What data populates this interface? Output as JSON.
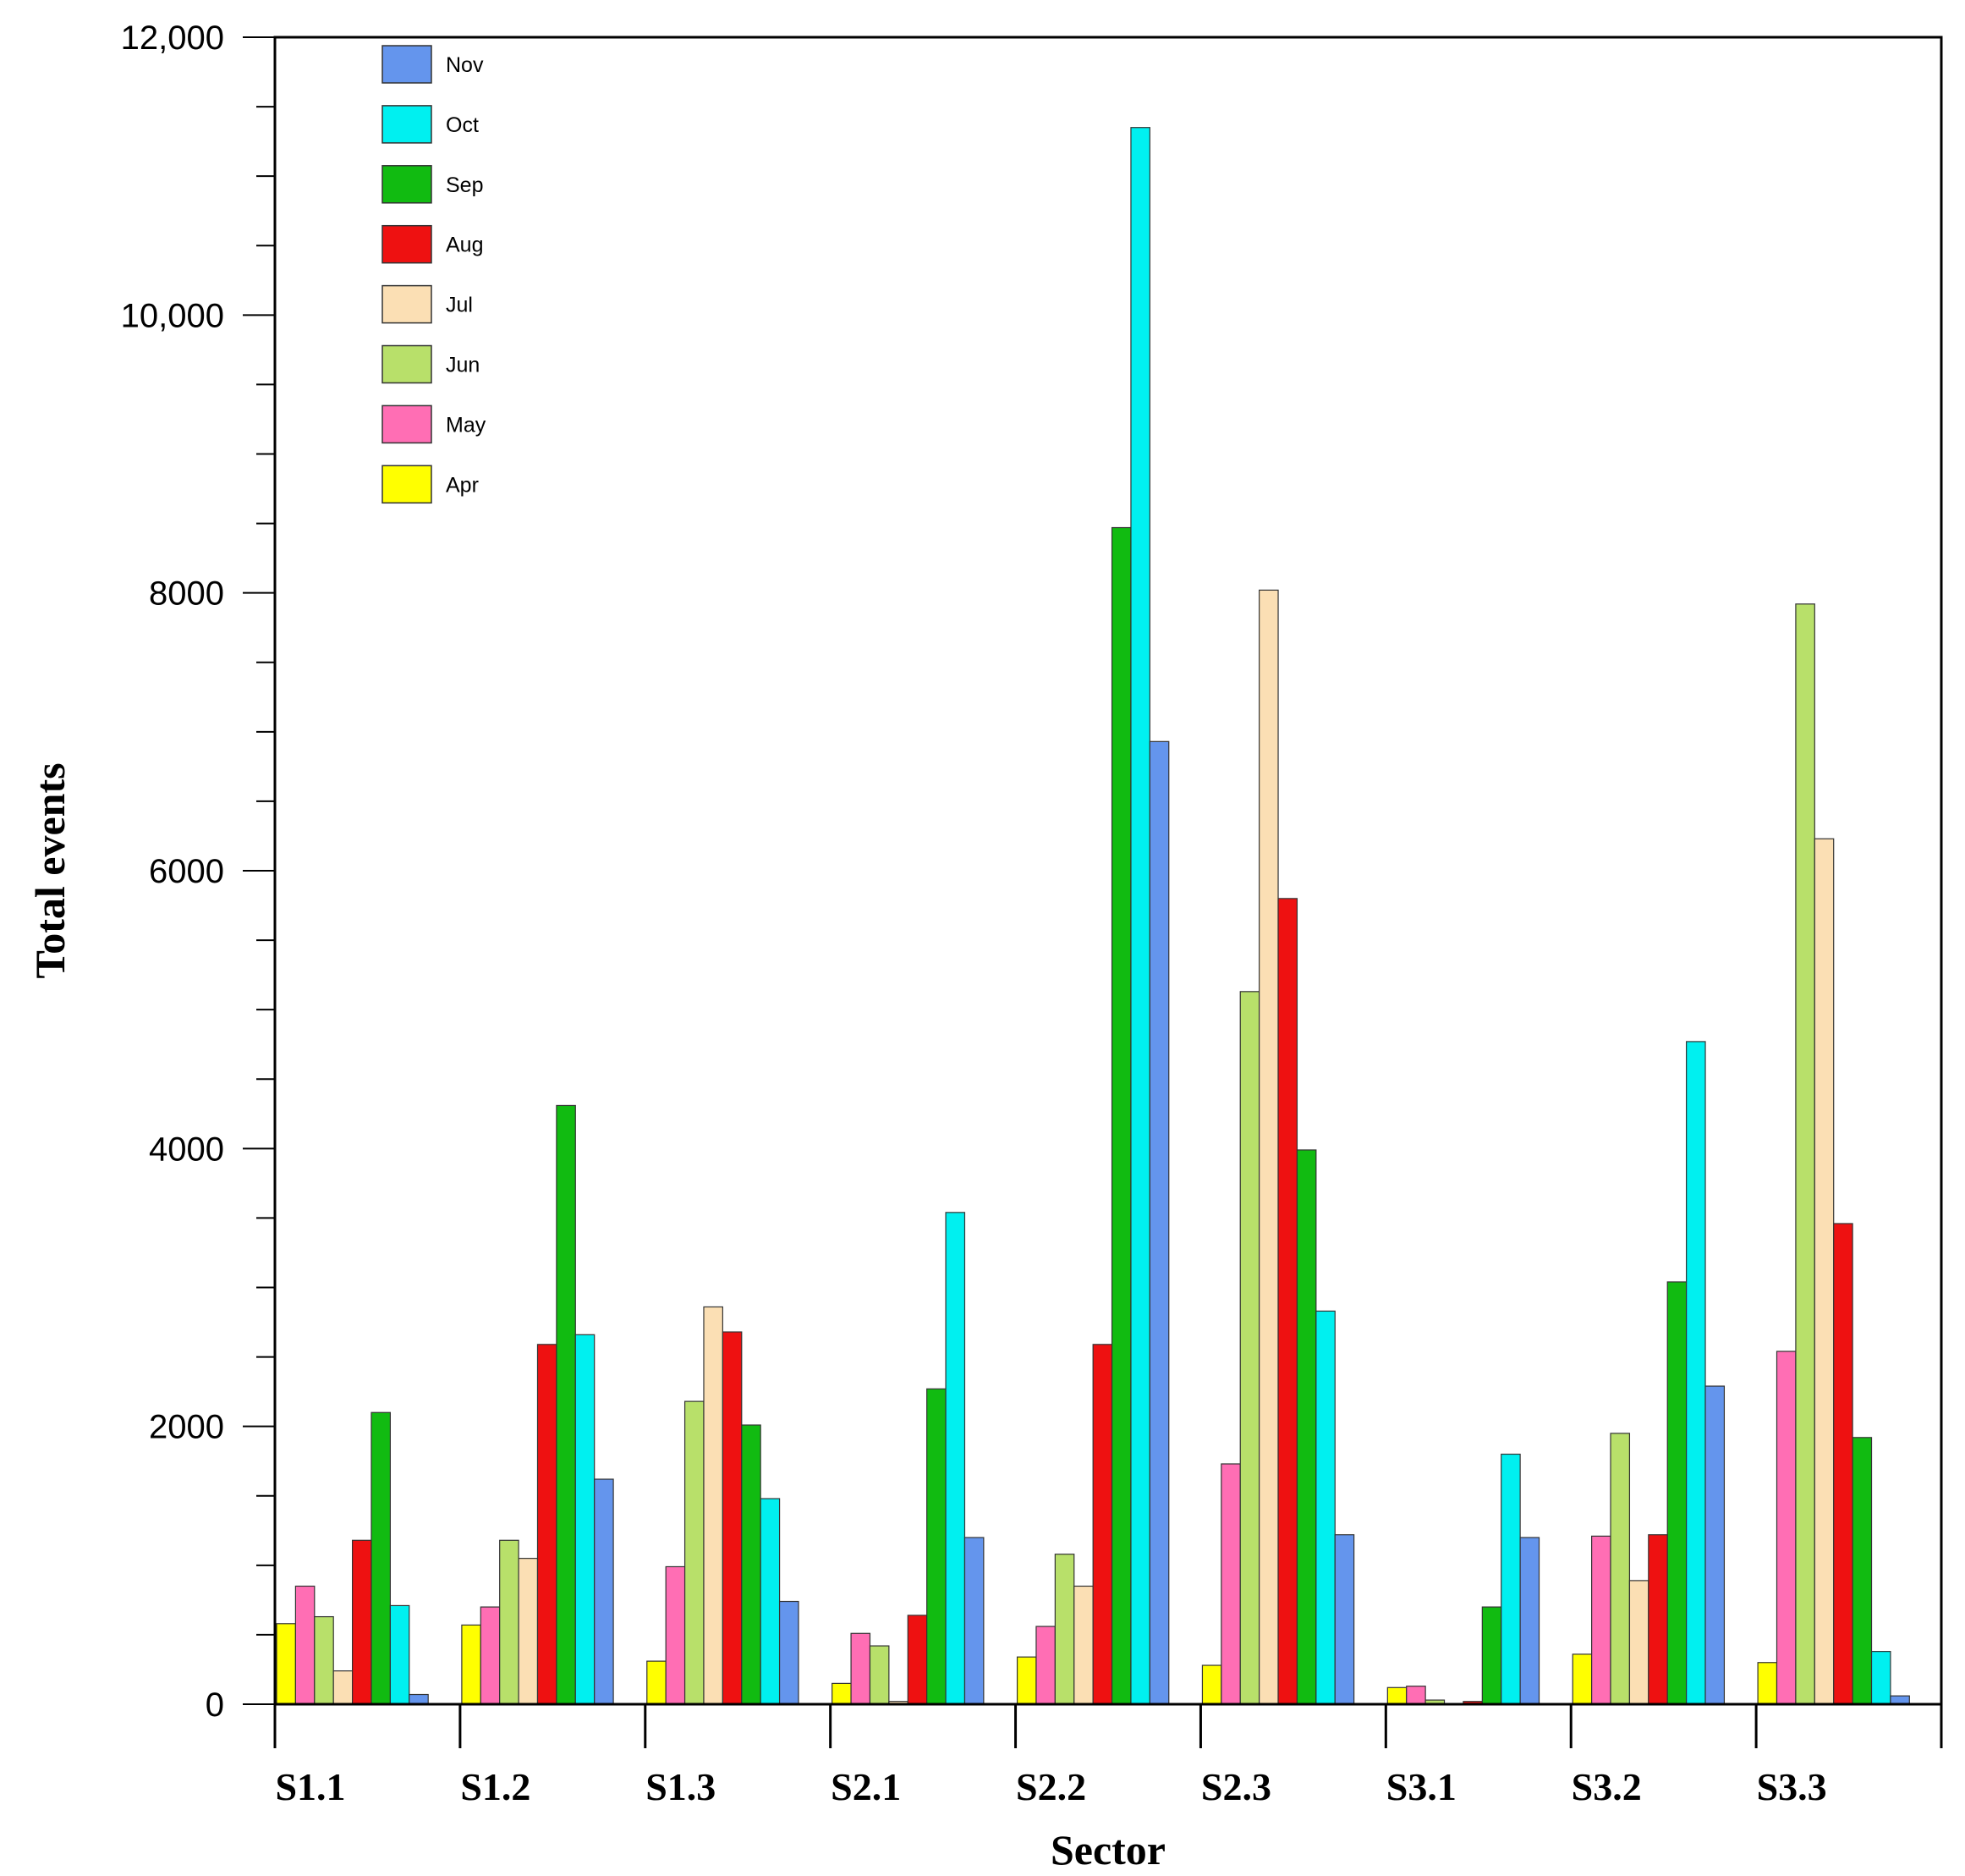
{
  "chart_data": {
    "type": "bar",
    "title": "",
    "xlabel": "Sector",
    "ylabel": "Total events",
    "ylim": [
      0,
      12000
    ],
    "y_ticks": [
      0,
      2000,
      4000,
      6000,
      8000,
      10000,
      12000
    ],
    "y_tick_labels": [
      "0",
      "2000",
      "4000",
      "6000",
      "8000",
      "10,000",
      "12,000"
    ],
    "y_minor_step": 500,
    "legend_position": "top-left",
    "legend_order": [
      "Nov",
      "Oct",
      "Sep",
      "Aug",
      "Jul",
      "Jun",
      "May",
      "Apr"
    ],
    "categories": [
      "S1.1",
      "S1.2",
      "S1.3",
      "S2.1",
      "S2.2",
      "S2.3",
      "S3.1",
      "S3.2",
      "S3.3"
    ],
    "series": [
      {
        "name": "Apr",
        "color": "#ffff00",
        "values": [
          580,
          570,
          310,
          150,
          340,
          280,
          120,
          360,
          300
        ]
      },
      {
        "name": "May",
        "color": "#ff6eb4",
        "values": [
          850,
          700,
          990,
          510,
          560,
          1730,
          130,
          1210,
          2540
        ]
      },
      {
        "name": "Jun",
        "color": "#b8e06a",
        "values": [
          630,
          1180,
          2180,
          420,
          1080,
          5130,
          30,
          1950,
          7920
        ]
      },
      {
        "name": "Jul",
        "color": "#fbdfb4",
        "values": [
          240,
          1050,
          2860,
          20,
          850,
          8020,
          0,
          890,
          6230
        ]
      },
      {
        "name": "Aug",
        "color": "#ee1111",
        "values": [
          1180,
          2590,
          2680,
          640,
          2590,
          5800,
          20,
          1220,
          3460
        ]
      },
      {
        "name": "Sep",
        "color": "#11bb11",
        "values": [
          2100,
          4310,
          2010,
          2270,
          8470,
          3990,
          700,
          3040,
          1920
        ]
      },
      {
        "name": "Oct",
        "color": "#00f0f0",
        "values": [
          710,
          2660,
          1480,
          3540,
          11350,
          2830,
          1800,
          4770,
          380
        ]
      },
      {
        "name": "Nov",
        "color": "#6495ed",
        "values": [
          70,
          1620,
          740,
          1200,
          6930,
          1220,
          1200,
          2290,
          60
        ]
      }
    ]
  }
}
